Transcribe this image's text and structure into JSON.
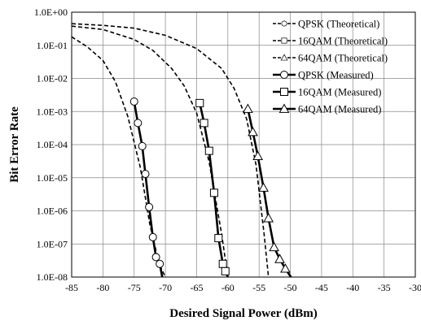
{
  "chart_data": {
    "type": "line",
    "title": "",
    "xlabel": "Desired Signal Power (dBm)",
    "ylabel": "Bit Error Rate",
    "xlim": [
      -85,
      -30
    ],
    "ylim_log10": [
      -8,
      0
    ],
    "y_scale": "log",
    "grid": "on",
    "legend_placement": "top-right",
    "x_ticks": [
      "-85",
      "-80",
      "-75",
      "-70",
      "-65",
      "-60",
      "-55",
      "-50",
      "-45",
      "-40",
      "-35",
      "-30"
    ],
    "y_ticks": [
      "1.0E-08",
      "1.0E-07",
      "1.0E-06",
      "1.0E-05",
      "1.0E-04",
      "1.0E-03",
      "1.0E-02",
      "1.0E-01",
      "1.0E+00"
    ],
    "series": [
      {
        "name": "QPSK (Theoretical)",
        "style": "theoretical",
        "marker": "circle",
        "x": [
          -85,
          -82.5,
          -80,
          -78,
          -76,
          -74,
          -72.5,
          -71,
          -70
        ],
        "y": [
          0.18,
          0.09,
          0.035,
          0.008,
          0.0007,
          2e-05,
          4e-07,
          2.5e-08,
          1e-08
        ]
      },
      {
        "name": "16QAM (Theoretical)",
        "style": "theoretical",
        "marker": "square",
        "x": [
          -85,
          -80,
          -75,
          -72,
          -69,
          -67,
          -65,
          -63,
          -61,
          -60
        ],
        "y": [
          0.38,
          0.3,
          0.15,
          0.07,
          0.02,
          0.006,
          0.0009,
          3e-05,
          2e-07,
          1e-08
        ]
      },
      {
        "name": "64QAM (Theoretical)",
        "style": "theoretical",
        "marker": "triangle",
        "x": [
          -85,
          -80,
          -75,
          -70,
          -65,
          -61,
          -59,
          -57,
          -55.5,
          -54.2,
          -53.5
        ],
        "y": [
          0.45,
          0.4,
          0.33,
          0.2,
          0.08,
          0.02,
          0.005,
          0.0006,
          2.5e-05,
          2e-07,
          1e-08
        ]
      },
      {
        "name": "QPSK (Measured)",
        "style": "measured",
        "marker": "circle",
        "x": [
          -75,
          -74.4,
          -73.7,
          -73.2,
          -72.6,
          -72,
          -71.5,
          -70.9,
          -70.5
        ],
        "y": [
          0.002,
          0.00045,
          9e-05,
          1.3e-05,
          1.3e-06,
          1.6e-07,
          4e-08,
          2.5e-08,
          1e-08
        ]
      },
      {
        "name": "16QAM (Measured)",
        "style": "measured",
        "marker": "square",
        "x": [
          -64.5,
          -63.8,
          -63,
          -62.2,
          -61.5,
          -60.8,
          -60.4,
          -60
        ],
        "y": [
          0.0018,
          0.00045,
          6.5e-05,
          3.5e-06,
          1.5e-07,
          2.5e-08,
          1.5e-08,
          1e-08
        ]
      },
      {
        "name": "64QAM (Measured)",
        "style": "measured",
        "marker": "triangle",
        "x": [
          -56.8,
          -56,
          -55.2,
          -54.3,
          -53.5,
          -52.6,
          -51.7,
          -50.8,
          -49.9
        ],
        "y": [
          0.0012,
          0.00024,
          4.5e-05,
          5e-06,
          6e-07,
          8e-08,
          3.5e-08,
          1.8e-08,
          1e-08
        ]
      }
    ]
  }
}
